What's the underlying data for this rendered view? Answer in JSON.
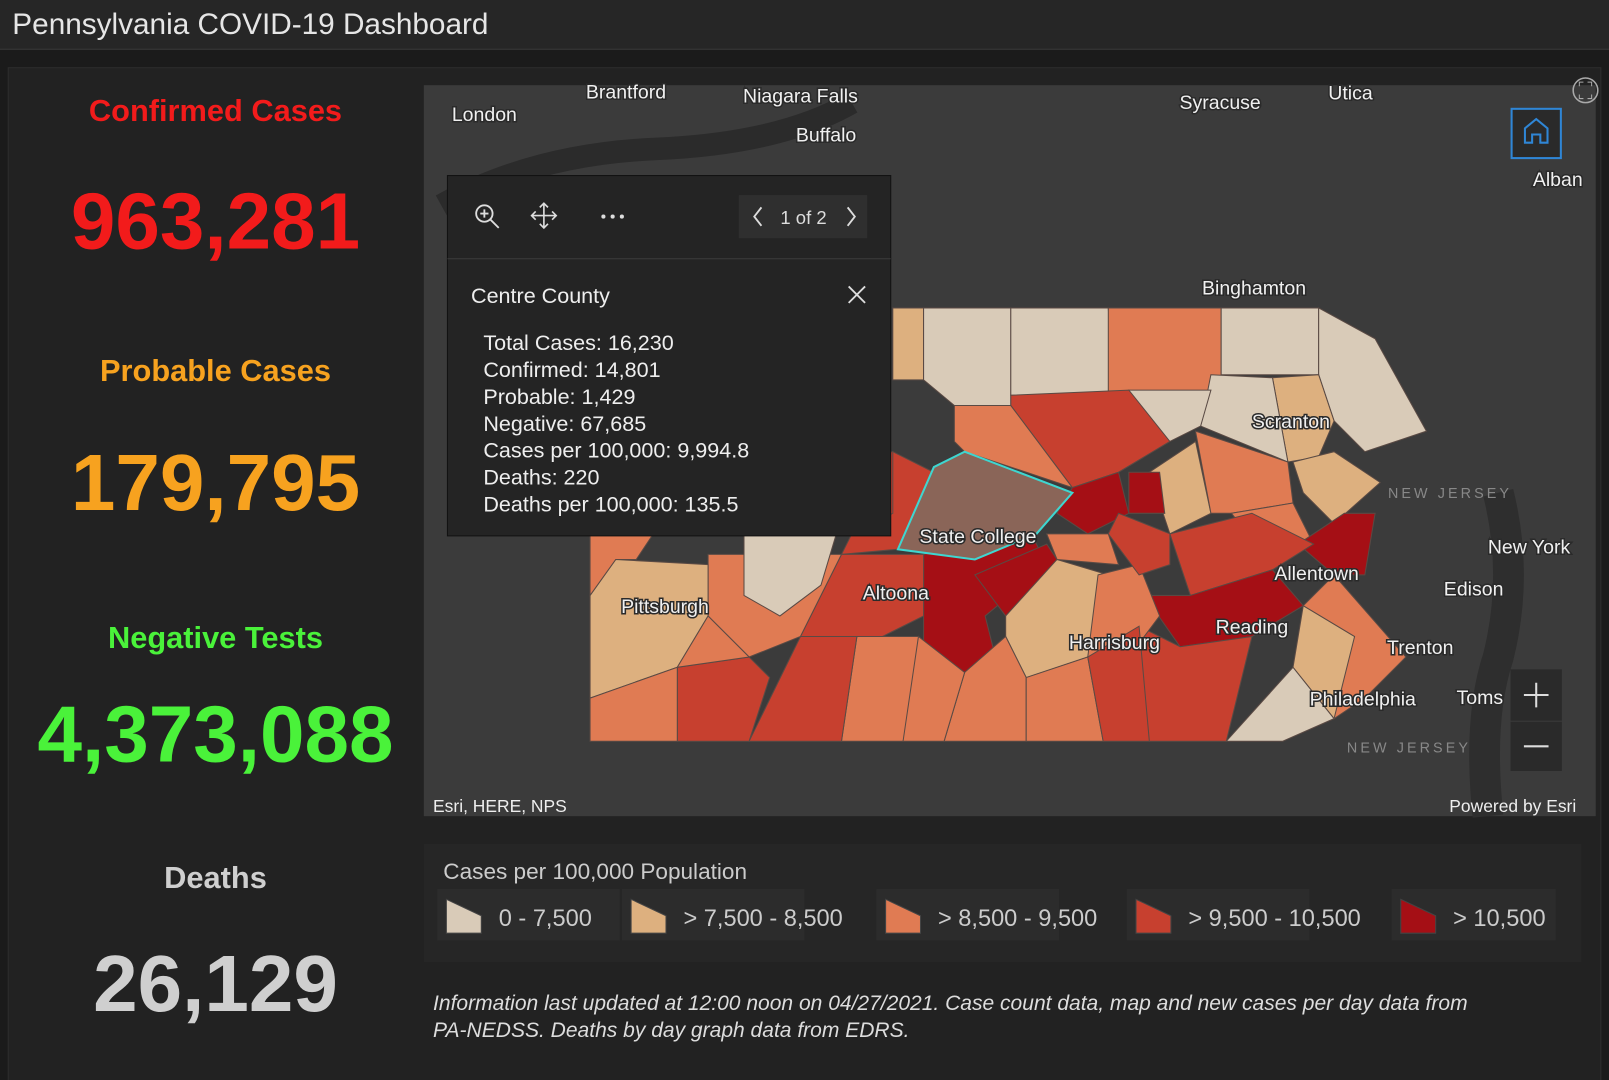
{
  "header": {
    "title": "Pennsylvania COVID-19 Dashboard"
  },
  "stats": [
    {
      "label": "Confirmed Cases",
      "value": "963,281"
    },
    {
      "label": "Probable Cases",
      "value": "179,795"
    },
    {
      "label": "Negative Tests",
      "value": "4,373,088"
    },
    {
      "label": "Deaths",
      "value": "26,129"
    }
  ],
  "map": {
    "labels": [
      "London",
      "Brantford",
      "Niagara Falls",
      "Buffalo",
      "Syracuse",
      "Utica",
      "Alban",
      "Binghamton",
      "Scranton",
      "New York",
      "Edison",
      "Allentown",
      "Reading",
      "Trenton",
      "Philadelphia",
      "Toms",
      "State College",
      "Altoona",
      "Pittsburgh",
      "Harrisburg",
      "NEW JERSEY",
      "NEW JERSEY"
    ],
    "attribution": "Esri, HERE, NPS",
    "powered_by": "Powered by Esri"
  },
  "popup": {
    "title": "Centre County",
    "pager": "1 of 2",
    "lines": [
      "Total Cases: 16,230",
      "Confirmed: 14,801",
      "Probable: 1,429",
      "Negative: 67,685",
      "Cases per 100,000: 9,994.8",
      "Deaths: 220",
      "Deaths per 100,000: 135.5"
    ]
  },
  "legend": {
    "title": "Cases per 100,000 Population",
    "items": [
      {
        "label": "0 - 7,500",
        "color": "#d9cbb8"
      },
      {
        "label": "> 7,500 - 8,500",
        "color": "#ddb07f"
      },
      {
        "label": "> 8,500 - 9,500",
        "color": "#e07b53"
      },
      {
        "label": "> 9,500 - 10,500",
        "color": "#c7402f"
      },
      {
        "label": "> 10,500",
        "color": "#a50f15"
      }
    ]
  },
  "footer": {
    "lines": [
      "Information last updated at 12:00 noon on 04/27/2021. Case count data, map and new cases per day data from",
      "PA-NEDSS.  Deaths by day graph data from EDRS."
    ]
  }
}
